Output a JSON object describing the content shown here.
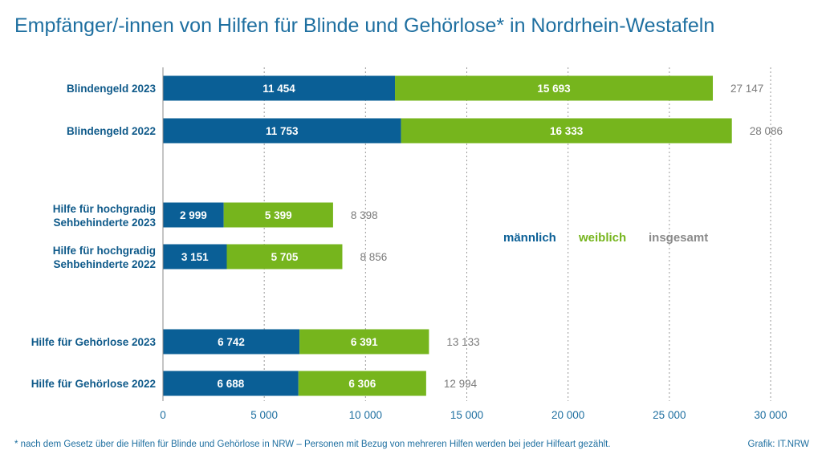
{
  "chart_data": {
    "type": "bar",
    "orientation": "horizontal",
    "stacked": true,
    "title": "Empfänger/-innen von Hilfen für Blinde und Gehörlose* in Nordrhein-Westafeln",
    "categories": [
      [
        "Blindengeld 2023"
      ],
      [
        "Blindengeld 2022"
      ],
      [
        "Hilfe für hochgradig",
        "Sehbehinderte 2023"
      ],
      [
        "Hilfe für hochgradig",
        "Sehbehinderte 2022"
      ],
      [
        "Hilfe für Gehörlose 2023"
      ],
      [
        "Hilfe für Gehörlose 2022"
      ]
    ],
    "series": [
      {
        "name": "männlich",
        "color": "#0a5f96",
        "values": [
          11454,
          11753,
          2999,
          3151,
          6742,
          6688
        ],
        "labels": [
          "11 454",
          "11 753",
          "2 999",
          "3 151",
          "6 742",
          "6 688"
        ]
      },
      {
        "name": "weiblich",
        "color": "#76b51d",
        "values": [
          15693,
          16333,
          5399,
          5705,
          6391,
          6306
        ],
        "labels": [
          "15 693",
          "16 333",
          "5 399",
          "5 705",
          "6 391",
          "6 306"
        ]
      }
    ],
    "totals": {
      "name": "insgesamt",
      "color": "#8a8a8a",
      "values": [
        27147,
        28086,
        8398,
        8856,
        13133,
        12994
      ],
      "labels": [
        "27 147",
        "28 086",
        "8 398",
        "8 856",
        "13 133",
        "12 994"
      ]
    },
    "xlim": [
      0,
      30000
    ],
    "xticks": [
      0,
      5000,
      10000,
      15000,
      20000,
      25000,
      30000
    ],
    "xtick_labels": [
      "0",
      "5 000",
      "10 000",
      "15 000",
      "20 000",
      "25 000",
      "30 000"
    ],
    "grid": true,
    "legend": "center-right"
  },
  "footnote": "* nach dem Gesetz über die Hilfen für Blinde und Gehörlose in NRW – Personen mit Bezug von mehreren Hilfen werden bei jeder Hilfeart gezählt.",
  "credit": "Grafik: IT.NRW"
}
